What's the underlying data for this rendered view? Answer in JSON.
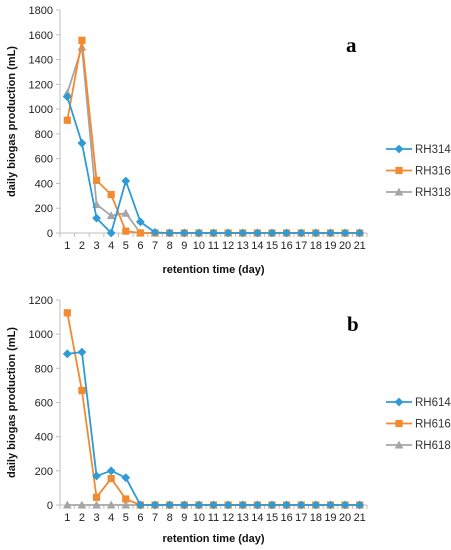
{
  "chart_data": [
    {
      "type": "line",
      "panel_label": "a",
      "x": [
        1,
        2,
        3,
        4,
        5,
        6,
        7,
        8,
        9,
        10,
        11,
        12,
        13,
        14,
        15,
        16,
        17,
        18,
        19,
        20,
        21
      ],
      "xlabel": "retention time (day)",
      "ylabel": "daily biogas production (mL)",
      "ylim": [
        0,
        1800
      ],
      "yticks": [
        0,
        200,
        400,
        600,
        800,
        1000,
        1200,
        1400,
        1600,
        1800
      ],
      "grid": false,
      "legend_position": "right",
      "series": [
        {
          "name": "RH314",
          "color": "#2E9BD6",
          "marker": "diamond",
          "values": [
            1100,
            725,
            120,
            0,
            420,
            90,
            5,
            0,
            0,
            0,
            0,
            0,
            0,
            0,
            0,
            0,
            0,
            0,
            0,
            0,
            0
          ]
        },
        {
          "name": "RH316",
          "color": "#F28A30",
          "marker": "square",
          "values": [
            910,
            1555,
            425,
            310,
            15,
            0,
            0,
            0,
            0,
            0,
            0,
            0,
            0,
            0,
            0,
            0,
            0,
            0,
            0,
            0,
            0
          ]
        },
        {
          "name": "RH318",
          "color": "#A6A6A6",
          "marker": "triangle",
          "values": [
            1130,
            1500,
            230,
            140,
            160,
            0,
            0,
            0,
            0,
            0,
            0,
            0,
            0,
            0,
            0,
            0,
            0,
            0,
            0,
            0,
            0
          ]
        }
      ]
    },
    {
      "type": "line",
      "panel_label": "b",
      "x": [
        1,
        2,
        3,
        4,
        5,
        6,
        7,
        8,
        9,
        10,
        11,
        12,
        13,
        14,
        15,
        16,
        17,
        18,
        19,
        20,
        21
      ],
      "xlabel": "retention time (day)",
      "ylabel": "daily biogas production (mL)",
      "ylim": [
        0,
        1200
      ],
      "yticks": [
        0,
        200,
        400,
        600,
        800,
        1000,
        1200
      ],
      "grid": false,
      "legend_position": "right",
      "series": [
        {
          "name": "RH614",
          "color": "#2E9BD6",
          "marker": "diamond",
          "values": [
            885,
            895,
            170,
            200,
            160,
            0,
            0,
            0,
            0,
            0,
            0,
            0,
            0,
            0,
            0,
            0,
            0,
            0,
            0,
            0,
            0
          ]
        },
        {
          "name": "RH616",
          "color": "#F28A30",
          "marker": "square",
          "values": [
            1125,
            670,
            45,
            155,
            35,
            0,
            0,
            0,
            0,
            0,
            0,
            0,
            0,
            0,
            0,
            0,
            0,
            0,
            0,
            0,
            0
          ]
        },
        {
          "name": "RH618",
          "color": "#A6A6A6",
          "marker": "triangle",
          "values": [
            0,
            0,
            0,
            0,
            0,
            0,
            0,
            0,
            0,
            0,
            0,
            0,
            0,
            0,
            0,
            0,
            0,
            0,
            0,
            0,
            0
          ]
        }
      ]
    }
  ]
}
